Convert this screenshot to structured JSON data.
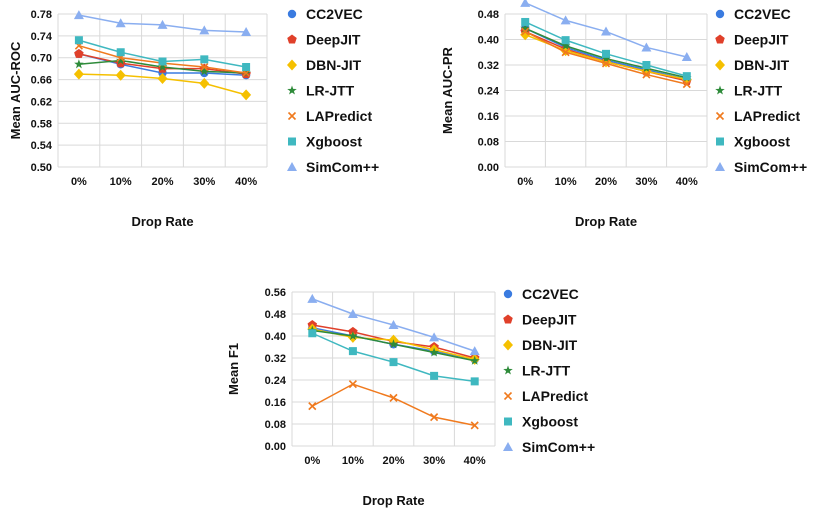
{
  "series_meta": [
    {
      "name": "CC2VEC",
      "color": "#3a7be0",
      "marker": "circle"
    },
    {
      "name": "DeepJIT",
      "color": "#e0402a",
      "marker": "pentagon"
    },
    {
      "name": "DBN-JIT",
      "color": "#f5c000",
      "marker": "diamond"
    },
    {
      "name": "LR-JTT",
      "color": "#2e8b3a",
      "marker": "star"
    },
    {
      "name": "LAPredict",
      "color": "#f07a1e",
      "marker": "x"
    },
    {
      "name": "Xgboost",
      "color": "#3fb8c0",
      "marker": "square"
    },
    {
      "name": "SimCom++",
      "color": "#8aaef0",
      "marker": "triangle"
    }
  ],
  "chart_data": [
    {
      "type": "line",
      "xlabel": "Drop Rate",
      "ylabel": "Mean AUC-ROC",
      "categories": [
        "0%",
        "10%",
        "20%",
        "30%",
        "40%"
      ],
      "ylim": [
        0.5,
        0.78
      ],
      "yticks": [
        "0.50",
        "0.54",
        "0.58",
        "0.62",
        "0.66",
        "0.70",
        "0.74",
        "0.78"
      ],
      "grid": true,
      "legend": "right",
      "series": [
        {
          "name": "CC2VEC",
          "values": [
            0.707,
            0.688,
            0.672,
            0.672,
            0.668
          ]
        },
        {
          "name": "DeepJIT",
          "values": [
            0.707,
            0.69,
            0.68,
            0.68,
            0.67
          ]
        },
        {
          "name": "DBN-JIT",
          "values": [
            0.67,
            0.668,
            0.662,
            0.653,
            0.632
          ]
        },
        {
          "name": "LR-JTT",
          "values": [
            0.688,
            0.695,
            0.683,
            0.675,
            0.672
          ]
        },
        {
          "name": "LAPredict",
          "values": [
            0.722,
            0.7,
            0.69,
            0.683,
            0.672
          ]
        },
        {
          "name": "Xgboost",
          "values": [
            0.732,
            0.71,
            0.693,
            0.697,
            0.683
          ]
        },
        {
          "name": "SimCom++",
          "values": [
            0.778,
            0.763,
            0.76,
            0.75,
            0.747
          ]
        }
      ]
    },
    {
      "type": "line",
      "xlabel": "Drop Rate",
      "ylabel": "Mean AUC-PR",
      "categories": [
        "0%",
        "10%",
        "20%",
        "30%",
        "40%"
      ],
      "ylim": [
        0.0,
        0.48
      ],
      "yticks": [
        "0.00",
        "0.08",
        "0.16",
        "0.24",
        "0.32",
        "0.40",
        "0.48"
      ],
      "grid": true,
      "legend": "right",
      "series": [
        {
          "name": "CC2VEC",
          "values": [
            0.435,
            0.375,
            0.335,
            0.305,
            0.275
          ]
        },
        {
          "name": "DeepJIT",
          "values": [
            0.425,
            0.37,
            0.33,
            0.3,
            0.27
          ]
        },
        {
          "name": "DBN-JIT",
          "values": [
            0.415,
            0.365,
            0.33,
            0.3,
            0.275
          ]
        },
        {
          "name": "LR-JTT",
          "values": [
            0.435,
            0.38,
            0.34,
            0.31,
            0.28
          ]
        },
        {
          "name": "LAPredict",
          "values": [
            0.425,
            0.36,
            0.325,
            0.29,
            0.26
          ]
        },
        {
          "name": "Xgboost",
          "values": [
            0.455,
            0.398,
            0.355,
            0.32,
            0.285
          ]
        },
        {
          "name": "SimCom++",
          "values": [
            0.515,
            0.46,
            0.425,
            0.375,
            0.345
          ]
        }
      ]
    },
    {
      "type": "line",
      "xlabel": "Drop Rate",
      "ylabel": "Mean F1",
      "categories": [
        "0%",
        "10%",
        "20%",
        "30%",
        "40%"
      ],
      "ylim": [
        0.0,
        0.56
      ],
      "yticks": [
        "0.00",
        "0.08",
        "0.16",
        "0.24",
        "0.32",
        "0.40",
        "0.48",
        "0.56"
      ],
      "grid": true,
      "legend": "right",
      "series": [
        {
          "name": "CC2VEC",
          "values": [
            0.43,
            0.4,
            0.37,
            0.345,
            0.315
          ]
        },
        {
          "name": "DeepJIT",
          "values": [
            0.44,
            0.415,
            0.38,
            0.36,
            0.32
          ]
        },
        {
          "name": "DBN-JIT",
          "values": [
            0.425,
            0.395,
            0.385,
            0.35,
            0.315
          ]
        },
        {
          "name": "LR-JTT",
          "values": [
            0.42,
            0.4,
            0.37,
            0.34,
            0.31
          ]
        },
        {
          "name": "LAPredict",
          "values": [
            0.145,
            0.225,
            0.175,
            0.105,
            0.075
          ]
        },
        {
          "name": "Xgboost",
          "values": [
            0.41,
            0.345,
            0.305,
            0.255,
            0.235
          ]
        },
        {
          "name": "SimCom++",
          "values": [
            0.535,
            0.48,
            0.44,
            0.395,
            0.345
          ]
        }
      ]
    }
  ]
}
